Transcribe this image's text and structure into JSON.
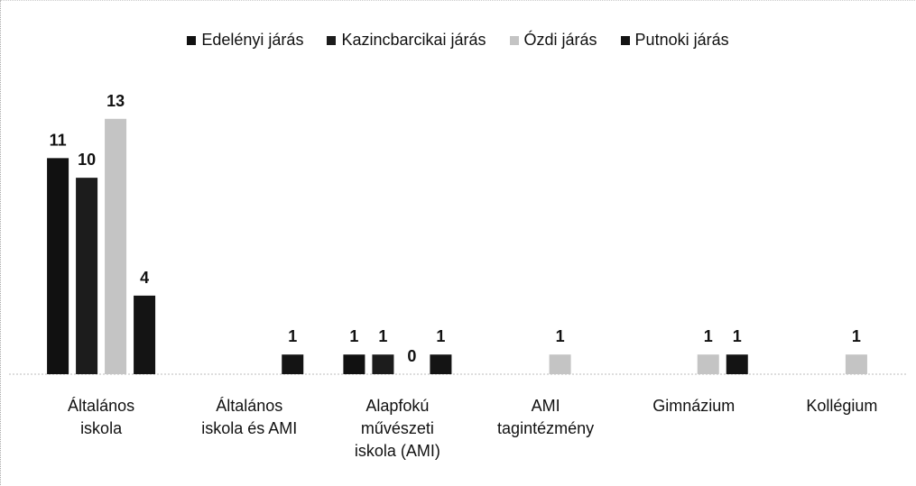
{
  "chart_data": {
    "type": "bar",
    "categories": [
      "Általános iskola",
      "Általános iskola és AMI",
      "Alapfokú művészeti iskola (AMI)",
      "AMI tagintézmény",
      "Gimnázium",
      "Kollégium"
    ],
    "series": [
      {
        "name": "Edelényi járás",
        "color": "#111111",
        "values": [
          11,
          null,
          1,
          null,
          null,
          null
        ]
      },
      {
        "name": "Kazincbarcikai járás",
        "color": "#1c1c1c",
        "values": [
          10,
          null,
          1,
          null,
          null,
          null
        ]
      },
      {
        "name": "Ózdi járás",
        "color": "#c4c4c4",
        "values": [
          13,
          null,
          0,
          1,
          1,
          1
        ]
      },
      {
        "name": "Putnoki járás",
        "color": "#141414",
        "values": [
          4,
          1,
          1,
          null,
          1,
          null
        ]
      }
    ],
    "ylim": [
      0,
      14
    ],
    "legend": "top"
  }
}
